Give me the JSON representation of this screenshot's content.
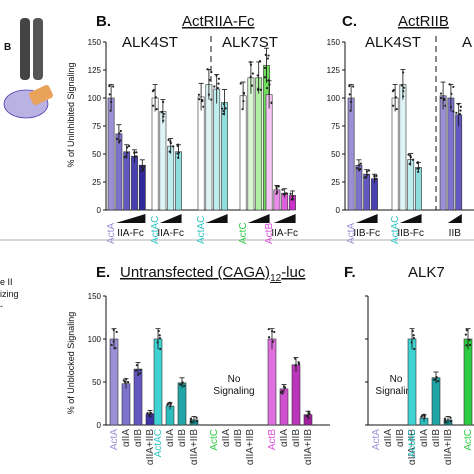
{
  "chart_data": [
    {
      "id": "B",
      "type": "bar",
      "panel_letter": "B.",
      "title": "ActRIIA-Fc",
      "ylabel": "% of Uninhibited Signaling",
      "ylim": [
        0,
        150
      ],
      "yticks": [
        0,
        25,
        50,
        75,
        100,
        125,
        150
      ],
      "subtitles": [
        "ALK4ST",
        "ALK7ST"
      ],
      "groups": [
        {
          "category": "ActA",
          "category_color": "#9b8fd6",
          "label": "IIA-Fc",
          "values": [
            100,
            68,
            52,
            48,
            40
          ],
          "colors": [
            "#9b8fd6",
            "#7d72cc",
            "#6258c0",
            "#4a41b0",
            "#2f289a"
          ]
        },
        {
          "category": "ActAC",
          "category_color": "#2bc4c4",
          "label": "IIA-Fc",
          "values": [
            100,
            88,
            57,
            52
          ],
          "colors": [
            "#ffffff",
            "#dff5f5",
            "#bfecec",
            "#8fdede"
          ]
        },
        {
          "category": "ActAC",
          "category_color": "#2bc4c4",
          "label": "",
          "values": [
            101,
            112,
            108,
            96
          ],
          "colors": [
            "#ffffff",
            "#dff5f5",
            "#bfecec",
            "#8fdede"
          ]
        },
        {
          "category": "ActC",
          "category_color": "#2ecc40",
          "label": "",
          "values": [
            102,
            118,
            118,
            129
          ],
          "colors": [
            "#ffffff",
            "#d9f7d2",
            "#aff0a3",
            "#6fdd5d"
          ]
        },
        {
          "category": "ActB",
          "category_color": "#d94fd9",
          "label": "IIA-Fc",
          "values": [
            103,
            18,
            15,
            13
          ],
          "colors": [
            "#f5c6f5",
            "#e88ce8",
            "#dd5ddd",
            "#c830c8"
          ]
        }
      ]
    },
    {
      "id": "C",
      "type": "bar",
      "panel_letter": "C.",
      "title": "ActRIIB",
      "ylim": [
        0,
        150
      ],
      "yticks": [
        0,
        25,
        50,
        75,
        100,
        125,
        150
      ],
      "subtitles": [
        "ALK4ST",
        "A"
      ],
      "groups": [
        {
          "category": "ActA",
          "category_color": "#9b8fd6",
          "label": "IIB-Fc",
          "values": [
            100,
            40,
            32,
            28
          ],
          "colors": [
            "#9b8fd6",
            "#7d72cc",
            "#6258c0",
            "#4a41b0"
          ]
        },
        {
          "category": "ActAC",
          "category_color": "#2bc4c4",
          "label": "IIB-Fc",
          "values": [
            100,
            112,
            45,
            38
          ],
          "colors": [
            "#ffffff",
            "#dff5f5",
            "#bfecec",
            "#8fdede"
          ]
        },
        {
          "category": "",
          "category_color": "#9b8fd6",
          "label": "IIB",
          "values": [
            102,
            100,
            85
          ],
          "colors": [
            "#9b8fd6",
            "#7d72cc",
            "#6258c0"
          ]
        }
      ]
    },
    {
      "id": "E",
      "type": "bar",
      "panel_letter": "E.",
      "title": "Untransfected (CAGA)",
      "title_sub": "12",
      "title_suffix": "-luc",
      "ylabel": "% of Unblocked Signaling",
      "ylim": [
        0,
        150
      ],
      "yticks": [
        0,
        50,
        100,
        150
      ],
      "no_signal_label": [
        "No",
        "Signaling"
      ],
      "groups": [
        {
          "category": "ActA",
          "category_color": "#9b8fd6",
          "bars": [
            {
              "label": "ActA",
              "value": 100
            },
            {
              "label": "αIIA",
              "value": 48
            },
            {
              "label": "αIIB",
              "value": 65
            },
            {
              "label": "αIIA+IIB",
              "value": 13
            }
          ],
          "colors": [
            "#9b8fd6",
            "#7d72cc",
            "#6258c0",
            "#3d34a8"
          ]
        },
        {
          "category": "ActAC",
          "category_color": "#2bc4c4",
          "bars": [
            {
              "label": "ActAC",
              "value": 100
            },
            {
              "label": "αIIA",
              "value": 22
            },
            {
              "label": "αIIB",
              "value": 49
            },
            {
              "label": "αIIA+IIB",
              "value": 6
            }
          ],
          "colors": [
            "#3fd3d3",
            "#2bbdbd",
            "#1fa5a5",
            "#158c8c"
          ]
        },
        {
          "category": "ActC",
          "category_color": "#2ecc40",
          "no_signal": true,
          "bars": [
            {
              "label": "ActC",
              "value": 0
            },
            {
              "label": "αIIA",
              "value": 0
            },
            {
              "label": "αIIB",
              "value": 0
            },
            {
              "label": "αIIA+IIB",
              "value": 0
            }
          ],
          "colors": [
            "#2ecc40",
            "#2ecc40",
            "#2ecc40",
            "#2ecc40"
          ]
        },
        {
          "category": "ActB",
          "category_color": "#d94fd9",
          "bars": [
            {
              "label": "ActB",
              "value": 100
            },
            {
              "label": "αIIA",
              "value": 42
            },
            {
              "label": "αIIB",
              "value": 70
            },
            {
              "label": "αIIA+IIB",
              "value": 12
            }
          ],
          "colors": [
            "#e070e0",
            "#d050d0",
            "#bb35bb",
            "#a020a0"
          ]
        }
      ]
    },
    {
      "id": "F",
      "type": "bar",
      "panel_letter": "F.",
      "title": "ALK7",
      "ylim": [
        0,
        150
      ],
      "yticks": [
        0,
        50,
        100,
        150
      ],
      "no_signal_label": [
        "No",
        "Signaling"
      ],
      "groups": [
        {
          "category": "ActA",
          "category_color": "#9b8fd6",
          "no_signal": true,
          "bars": [
            {
              "label": "ActA",
              "value": 0
            },
            {
              "label": "αIIA",
              "value": 0
            },
            {
              "label": "αIIB",
              "value": 0
            },
            {
              "label": "αIIA+IIB",
              "value": 0
            }
          ],
          "colors": [
            "#9b8fd6",
            "#9b8fd6",
            "#9b8fd6",
            "#9b8fd6"
          ]
        },
        {
          "category": "ActAC",
          "category_color": "#2bc4c4",
          "bars": [
            {
              "label": "ActAC",
              "value": 100
            },
            {
              "label": "αIIA",
              "value": 8
            },
            {
              "label": "αIIB",
              "value": 55
            },
            {
              "label": "αIIA+IIB",
              "value": 6
            }
          ],
          "colors": [
            "#3fd3d3",
            "#2bbdbd",
            "#1fa5a5",
            "#158c8c"
          ]
        },
        {
          "category": "ActC",
          "category_color": "#2ecc40",
          "bars": [
            {
              "label": "ActC",
              "value": 100
            }
          ],
          "colors": [
            "#2ecc40"
          ]
        }
      ]
    }
  ],
  "side_text": {
    "letter": "B",
    "lines": [
      "e II",
      "izing",
      "-"
    ]
  },
  "colors": {
    "axis": "#111111",
    "errorbar": "#111111",
    "dot": "#222222"
  }
}
